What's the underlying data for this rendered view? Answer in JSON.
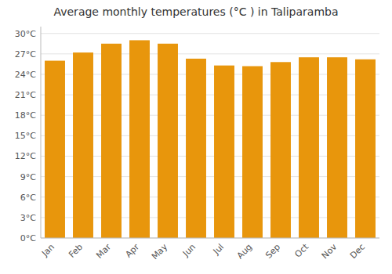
{
  "chart_data": {
    "type": "bar",
    "title": "Average monthly temperatures (°C ) in Taliparamba",
    "categories": [
      "Jan",
      "Feb",
      "Mar",
      "Apr",
      "May",
      "Jun",
      "Jul",
      "Aug",
      "Sep",
      "Oct",
      "Nov",
      "Dec"
    ],
    "values": [
      26.0,
      27.2,
      28.5,
      29.0,
      28.5,
      26.3,
      25.3,
      25.2,
      25.8,
      26.5,
      26.5,
      26.2
    ],
    "color": "#E8960C",
    "ylim": [
      0,
      31
    ],
    "yticks": [
      {
        "value": 0,
        "label": "0°C"
      },
      {
        "value": 3,
        "label": "3°C"
      },
      {
        "value": 6,
        "label": "6°C"
      },
      {
        "value": 9,
        "label": "9°C"
      },
      {
        "value": 12,
        "label": "12°C"
      },
      {
        "value": 15,
        "label": "15°C"
      },
      {
        "value": 18,
        "label": "18°C"
      },
      {
        "value": 21,
        "label": "21°C"
      },
      {
        "value": 24,
        "label": "24°C"
      },
      {
        "value": 27,
        "label": "27°C"
      },
      {
        "value": 30,
        "label": "30°C"
      }
    ],
    "grid": true
  }
}
